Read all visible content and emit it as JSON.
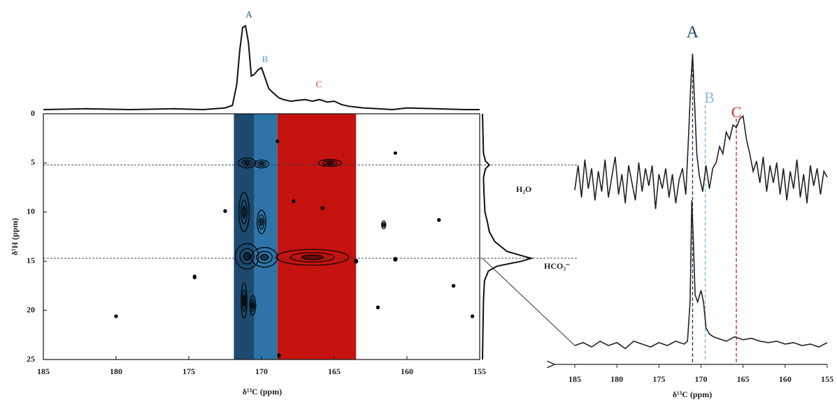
{
  "chart_data": [
    {
      "type": "contour",
      "xlabel": "δ¹³C (ppm)",
      "ylabel": "δ¹H (ppm)",
      "xlim": [
        185,
        155
      ],
      "ylim": [
        25,
        0
      ],
      "xticks": [
        185,
        180,
        175,
        170,
        165,
        160,
        155
      ],
      "yticks": [
        0,
        5,
        10,
        15,
        20,
        25
      ],
      "regions": [
        {
          "x": [
            171.9,
            170.5
          ],
          "color": "#1d4a6e"
        },
        {
          "x": [
            170.5,
            168.9
          ],
          "color": "#2e74a8"
        },
        {
          "x": [
            168.9,
            163.5
          ],
          "color": "#c4130f"
        }
      ],
      "cross_peaks": {
        "x": [
          171.0,
          170.0,
          165.3,
          171.0,
          169.8,
          166.5,
          171.2,
          170.0,
          171.2,
          170.6,
          180.0,
          161.6,
          160.8,
          157.8,
          156.8,
          172.5,
          174.6,
          167.8,
          165.8,
          162.0,
          155.5,
          160.8,
          168.9,
          163.5,
          168.8
        ],
        "y": [
          5.0,
          5.1,
          5.0,
          14.5,
          14.6,
          14.6,
          10.0,
          11.0,
          19.0,
          19.5,
          20.6,
          11.3,
          14.8,
          10.8,
          17.5,
          9.9,
          16.6,
          8.9,
          9.6,
          19.7,
          20.6,
          4.0,
          2.8,
          15.0,
          24.6
        ],
        "rx": [
          0.6,
          0.5,
          0.8,
          0.8,
          0.9,
          2.5,
          0.35,
          0.3,
          0.2,
          0.2,
          0.1,
          0.15,
          0.12,
          0.1,
          0.1,
          0.1,
          0.1,
          0.1,
          0.1,
          0.1,
          0.1,
          0.1,
          0.1,
          0.12,
          0.1
        ],
        "ry": [
          0.5,
          0.4,
          0.35,
          1.3,
          1.0,
          0.8,
          2.0,
          1.2,
          1.8,
          1.0,
          0.15,
          0.4,
          0.2,
          0.15,
          0.15,
          0.15,
          0.2,
          0.15,
          0.15,
          0.15,
          0.15,
          0.12,
          0.15,
          0.2,
          0.2
        ]
      },
      "slices": {
        "y": [
          5.2,
          14.7
        ],
        "labels": [
          "H₂O",
          "HCO₃⁻"
        ]
      },
      "top_projection": {
        "x": [
          185,
          182,
          179,
          176,
          174,
          172.5,
          172,
          171.7,
          171.5,
          171.3,
          171.1,
          170.9,
          170.7,
          170.5,
          170.2,
          170,
          169.8,
          169.5,
          169.2,
          168.8,
          168.5,
          168,
          167.5,
          167,
          166.5,
          166,
          165.5,
          165,
          164.5,
          164,
          163.5,
          163,
          162,
          161,
          160,
          158,
          156,
          155
        ],
        "values": [
          0,
          1,
          0,
          1,
          0,
          2,
          5,
          30,
          70,
          98,
          100,
          80,
          40,
          42,
          48,
          50,
          40,
          25,
          20,
          14,
          12,
          10,
          11,
          12,
          10,
          12,
          9,
          10,
          6,
          4,
          3,
          2,
          1,
          0,
          2,
          1,
          0,
          0
        ],
        "peak_labels": {
          "x": [
            171.1,
            170.0,
            166.3
          ],
          "labels": [
            "A",
            "B",
            "C"
          ],
          "colors": [
            "#1d4a6e",
            "#4a9ad8",
            "#d0302a"
          ]
        }
      },
      "side_projection": {
        "y": [
          0,
          2,
          4,
          4.8,
          5.2,
          5.6,
          6.5,
          8,
          10,
          11,
          12,
          13,
          14,
          14.5,
          14.7,
          15,
          15.5,
          16,
          17,
          19,
          22,
          25
        ],
        "values": [
          0,
          1,
          2,
          6,
          14,
          6,
          2,
          3,
          5,
          10,
          14,
          25,
          50,
          85,
          100,
          80,
          30,
          12,
          4,
          2,
          1,
          0
        ]
      }
    },
    {
      "type": "line",
      "xlabel": "δ¹³C (ppm)",
      "xlim": [
        185,
        155
      ],
      "xticks": [
        185,
        180,
        175,
        170,
        165,
        160,
        155
      ],
      "series": [
        {
          "color": "#222",
          "x": [
            185,
            184.6,
            184.2,
            183.8,
            183.4,
            183,
            182.6,
            182.2,
            181.8,
            181.4,
            181,
            180.6,
            180.2,
            179.8,
            179.4,
            179,
            178.6,
            178.2,
            177.8,
            177.4,
            177,
            176.6,
            176.2,
            175.8,
            175.4,
            175,
            174.6,
            174.2,
            173.8,
            173.4,
            173,
            172.6,
            172.2,
            171.8,
            171.5,
            171.2,
            171.0,
            170.8,
            170.5,
            170.2,
            169.8,
            169.4,
            169,
            168.6,
            168.2,
            167.8,
            167.4,
            167,
            166.6,
            166.2,
            165.8,
            165.4,
            165,
            164.6,
            164.2,
            163.8,
            163.4,
            163,
            162.6,
            162.2,
            161.8,
            161.4,
            161,
            160.6,
            160.2,
            159.8,
            159.4,
            159,
            158.6,
            158.2,
            157.8,
            157.4,
            157,
            156.6,
            156.2,
            155.8,
            155.4,
            155
          ],
          "values": [
            -5,
            12,
            -10,
            16,
            -4,
            10,
            -12,
            8,
            -6,
            16,
            -10,
            4,
            18,
            -8,
            6,
            -14,
            12,
            0,
            -12,
            14,
            -6,
            10,
            -2,
            12,
            -18,
            6,
            -4,
            10,
            -10,
            6,
            -14,
            2,
            10,
            -8,
            30,
            70,
            89,
            60,
            20,
            5,
            -6,
            12,
            -4,
            10,
            14,
            25,
            20,
            35,
            30,
            40,
            38,
            44,
            46,
            30,
            20,
            8,
            15,
            0,
            18,
            -6,
            12,
            0,
            14,
            -8,
            10,
            -12,
            8,
            -4,
            16,
            -10,
            6,
            -14,
            12,
            -2,
            10,
            -8,
            8,
            4
          ]
        },
        {
          "color": "#222",
          "x": [
            185,
            184,
            183,
            182,
            181,
            180,
            179,
            178,
            177,
            176,
            175,
            174,
            173,
            172,
            171.6,
            171.3,
            171.1,
            170.9,
            170.7,
            170.4,
            170.0,
            169.7,
            169.4,
            169.0,
            168.5,
            168,
            167,
            166,
            165,
            164,
            163,
            162,
            161,
            160,
            159,
            158,
            157,
            156,
            155
          ],
          "values": [
            0,
            2,
            -1,
            3,
            0,
            2,
            -2,
            3,
            1,
            -1,
            2,
            0,
            3,
            1,
            3,
            30,
            100,
            70,
            35,
            30,
            38,
            30,
            12,
            8,
            6,
            5,
            3,
            6,
            4,
            5,
            3,
            2,
            3,
            1,
            2,
            0,
            1,
            -1,
            2
          ]
        }
      ],
      "markers": {
        "x": [
          171.0,
          169.5,
          165.8
        ],
        "labels": [
          "A",
          "B",
          "C"
        ],
        "colors": [
          "#1d4a6e",
          "#8cb8e0",
          "#d0302a"
        ]
      }
    }
  ]
}
